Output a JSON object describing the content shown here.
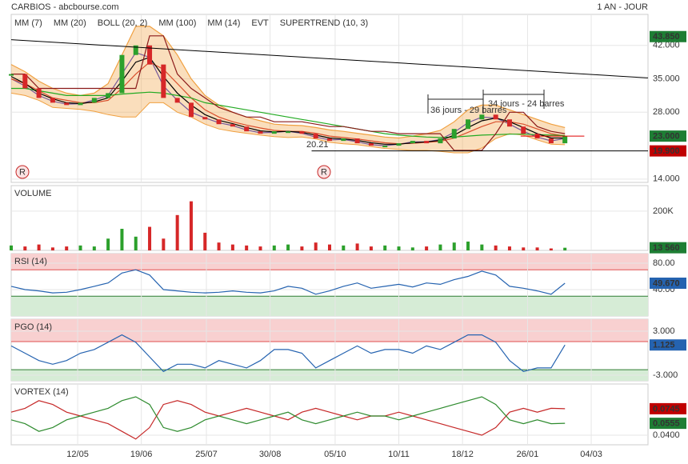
{
  "header": {
    "title": "CARBIOS - abcbourse.com",
    "period": "1 AN - JOUR"
  },
  "chart_data": [
    {
      "type": "line",
      "x": [
        0,
        1,
        2,
        3,
        4,
        5,
        6,
        7,
        8,
        9,
        10,
        11,
        12,
        13,
        14,
        15,
        16,
        17,
        18,
        19,
        20,
        21,
        22,
        23,
        24,
        25,
        26,
        27,
        28,
        29,
        30,
        31,
        32,
        33,
        34,
        35,
        36,
        37,
        38,
        39,
        40
      ],
      "xlim": [
        0,
        46
      ],
      "xticks": [
        {
          "value": 4.8,
          "label": "12/05"
        },
        {
          "value": 9.4,
          "label": "19/06"
        },
        {
          "value": 14.1,
          "label": "25/07"
        },
        {
          "value": 18.7,
          "label": "30/08"
        },
        {
          "value": 23.4,
          "label": "05/10"
        },
        {
          "value": 28,
          "label": "10/11"
        },
        {
          "value": 32.6,
          "label": "18/12"
        },
        {
          "value": 37.3,
          "label": "26/01"
        },
        {
          "value": 41.9,
          "label": "04/03"
        }
      ],
      "ylim": [
        13.3,
        48.5
      ],
      "yticks": [
        {
          "value": 14,
          "label": "14.000"
        },
        {
          "value": 28,
          "label": "28.000"
        },
        {
          "value": 35,
          "label": "35.000"
        },
        {
          "value": 42,
          "label": "42.000"
        }
      ],
      "up_color": "#2ca02c",
      "down_color": "#d62728",
      "values": [
        36,
        33,
        31,
        30,
        29.5,
        30,
        31,
        32,
        40,
        42,
        38,
        31,
        30,
        27,
        26.5,
        25.5,
        25,
        24,
        23.5,
        24,
        24,
        23.5,
        22.5,
        22,
        22.5,
        21.5,
        21,
        21,
        21.5,
        22,
        21.5,
        22.5,
        24.5,
        26.5,
        27.5,
        26.5,
        25,
        23.5,
        22.5,
        21.5,
        23
      ],
      "series": [
        {
          "name": "MM (7)",
          "color": "#3333cc",
          "values": [
            35,
            33.5,
            31.5,
            30.3,
            29.7,
            29.8,
            30.6,
            31.5,
            36,
            40.5,
            39.5,
            33.5,
            30.5,
            28,
            26.8,
            25.8,
            25.2,
            24.3,
            23.7,
            23.8,
            24,
            23.6,
            22.8,
            22.2,
            22.3,
            21.8,
            21.2,
            21,
            21.3,
            21.8,
            21.8,
            22.3,
            23.8,
            25.8,
            27,
            26.8,
            25.5,
            24,
            22.8,
            22,
            22.5
          ]
        },
        {
          "name": "MM (20)",
          "color": "#cc2222",
          "values": [
            35,
            34,
            32.5,
            31,
            30.5,
            30,
            30,
            30.5,
            33,
            36,
            38.5,
            37,
            34,
            31,
            28.5,
            27,
            26,
            25.3,
            24.7,
            24.2,
            24,
            24,
            23.6,
            23,
            22.7,
            22.4,
            22,
            21.6,
            21.4,
            21.5,
            21.7,
            21.9,
            22.6,
            23.8,
            25,
            26,
            26,
            25.5,
            24.5,
            23.5,
            23
          ]
        },
        {
          "name": "BOLL (20, 2)",
          "color": "#f0a040",
          "values": [
            38,
            36.5,
            34.5,
            33,
            32,
            31.5,
            32,
            34,
            40,
            46,
            46,
            44,
            40,
            35,
            31.5,
            29.5,
            28,
            27,
            26.2,
            25.5,
            25.3,
            25.2,
            24.8,
            24.3,
            24,
            23.6,
            23.2,
            22.8,
            22.6,
            23,
            23.5,
            24.2,
            26,
            28.5,
            29.5,
            29.5,
            28.5,
            27.5,
            26.5,
            25.5,
            24.8
          ],
          "lower": [
            32,
            31.5,
            30.5,
            29,
            28.8,
            28.6,
            28.2,
            27.5,
            27,
            27,
            30,
            30,
            28,
            27,
            25.5,
            24.5,
            24,
            23.6,
            23.2,
            22.9,
            22.7,
            22.8,
            22.4,
            21.7,
            21.4,
            21.2,
            20.8,
            20.4,
            20.2,
            20,
            20,
            19.8,
            19.5,
            19.5,
            20.5,
            22.5,
            23.5,
            23.2,
            22.2,
            21.3,
            21.2
          ]
        },
        {
          "name": "MM (100)",
          "color": "#22aa22",
          "values": [
            33,
            33,
            32.5,
            32,
            31.5,
            31.5,
            31.5,
            31.5,
            31.8,
            32,
            32.2,
            32,
            31.5,
            31,
            30,
            29.5,
            29,
            28.5,
            28,
            27.5,
            27,
            26.5,
            26,
            25.5,
            25,
            24.5,
            24,
            23.5,
            23.2,
            23,
            22.8,
            22.7,
            22.8,
            23,
            23.2,
            23.3,
            23.4,
            23.4,
            23.3,
            23.2,
            23.1
          ]
        },
        {
          "name": "MM (14)",
          "color": "#000000",
          "values": [
            35.5,
            34,
            32,
            30.8,
            30,
            29.8,
            30.2,
            31,
            34.5,
            38.5,
            39.5,
            35.5,
            32,
            29.5,
            27.5,
            26.3,
            25.6,
            24.8,
            24.1,
            23.9,
            24,
            23.8,
            23.2,
            22.6,
            22.4,
            22.1,
            21.6,
            21.3,
            21.3,
            21.6,
            21.8,
            22.1,
            23.2,
            24.8,
            26.2,
            26.8,
            26,
            24.8,
            23.5,
            22.6,
            22.6
          ]
        },
        {
          "name": "SUPERTREND (10, 3)",
          "color": "#8b1a1a",
          "values": [
            36,
            36,
            33,
            33,
            33,
            33,
            33,
            33,
            33,
            33,
            44,
            44,
            36,
            33,
            31,
            29,
            28,
            27,
            27,
            26,
            26,
            26,
            25.5,
            25,
            25,
            24.5,
            24,
            24,
            23.5,
            23.5,
            23.5,
            23.5,
            20,
            20,
            20,
            23.5,
            28,
            28,
            25,
            24,
            23.5
          ]
        }
      ],
      "events": {
        "name": "EVT",
        "markers": [
          "R",
          "R"
        ]
      },
      "lines": [
        {
          "x": [
            0,
            46
          ],
          "values": [
            43.2,
            35.2
          ],
          "color": "#000000"
        },
        {
          "x": [
            21.7,
            46
          ],
          "values": [
            19.9,
            19.9
          ],
          "color": "#000000"
        },
        {
          "x": [
            36.8,
            41.4
          ],
          "values": [
            23,
            23
          ],
          "color": "#e00000"
        }
      ],
      "annotations": [
        "20.21",
        "36 jours - 29 barres",
        "34 jours - 24 barres"
      ],
      "last_labels": [
        {
          "value": 43.85,
          "label": "43.850",
          "color": "#1e7e34"
        },
        {
          "value": 23,
          "label": "23.000",
          "color": "#1e7e34"
        },
        {
          "value": 19.9,
          "label": "19.900",
          "color": "#c00000"
        }
      ]
    },
    {
      "type": "bar",
      "title": "VOLUME",
      "ylim": [
        0,
        330000
      ],
      "yticks": [
        {
          "value": 200000,
          "label": "200K"
        }
      ],
      "values": [
        25000,
        20000,
        30000,
        15000,
        20000,
        25000,
        20000,
        60000,
        110000,
        70000,
        120000,
        60000,
        180000,
        250000,
        90000,
        40000,
        30000,
        25000,
        20000,
        25000,
        30000,
        20000,
        40000,
        30000,
        25000,
        35000,
        20000,
        25000,
        20000,
        15000,
        20000,
        30000,
        40000,
        45000,
        30000,
        25000,
        20000,
        15000,
        15000,
        10000,
        13560
      ],
      "last_labels": [
        {
          "value": 13560,
          "label": "13 560",
          "color": "#1e7e34"
        }
      ]
    },
    {
      "type": "line",
      "title": "RSI (14)",
      "ylim": [
        0,
        94.5
      ],
      "yticks": [
        {
          "value": 40,
          "label": "40.00"
        },
        {
          "value": 80,
          "label": "80.00"
        }
      ],
      "bands": [
        {
          "from": 70,
          "to": 94.5,
          "color": "#f8d0d0",
          "line": "#e05050"
        },
        {
          "from": 0,
          "to": 30,
          "color": "#d6ecd6",
          "line": "#2e7d32"
        }
      ],
      "series": [
        {
          "color": "#2563b0",
          "values": [
            45,
            40,
            38,
            35,
            36,
            40,
            45,
            50,
            65,
            70,
            62,
            40,
            38,
            36,
            35,
            36,
            38,
            36,
            35,
            38,
            45,
            42,
            33,
            38,
            45,
            50,
            42,
            45,
            48,
            44,
            50,
            48,
            55,
            60,
            68,
            62,
            45,
            42,
            38,
            33,
            49.67
          ]
        }
      ],
      "last_labels": [
        {
          "value": 49.67,
          "label": "49.670",
          "color": "#2563b0"
        }
      ]
    },
    {
      "type": "line",
      "title": "PGO (14)",
      "ylim": [
        -3.76,
        4.64
      ],
      "yticks": [
        {
          "value": -3,
          "label": "-3.000"
        },
        {
          "value": 3,
          "label": "3.000"
        }
      ],
      "bands": [
        {
          "from": 1.58,
          "to": 4.64,
          "color": "#f8d0d0",
          "line": "#e05050"
        },
        {
          "from": -3.76,
          "to": -2.24,
          "color": "#d6ecd6",
          "line": "#2e7d32"
        }
      ],
      "series": [
        {
          "color": "#2563b0",
          "values": [
            1,
            0,
            -1,
            -1.5,
            -1,
            0,
            0.5,
            1.5,
            2.5,
            1.5,
            -0.5,
            -2.5,
            -1.5,
            -1.5,
            -2,
            -1,
            -1.5,
            -2,
            -1,
            0.5,
            0.5,
            0,
            -2,
            -1,
            0,
            1,
            0,
            0.5,
            0.5,
            0,
            1,
            0.5,
            1.5,
            2.5,
            2.5,
            1.5,
            -1,
            -2.5,
            -2,
            -2,
            1.125
          ]
        }
      ],
      "last_labels": [
        {
          "value": 1.125,
          "label": "1.125",
          "color": "#2563b0"
        }
      ]
    },
    {
      "type": "line",
      "title": "VORTEX (14)",
      "ylim": [
        0.0275,
        0.1067
      ],
      "yticks": [
        {
          "value": 0.04,
          "label": "0.0400"
        }
      ],
      "series": [
        {
          "color": "#c62828",
          "values": [
            0.07,
            0.075,
            0.085,
            0.08,
            0.07,
            0.065,
            0.06,
            0.055,
            0.045,
            0.035,
            0.05,
            0.08,
            0.085,
            0.08,
            0.07,
            0.065,
            0.07,
            0.075,
            0.07,
            0.065,
            0.06,
            0.07,
            0.075,
            0.07,
            0.065,
            0.06,
            0.065,
            0.065,
            0.07,
            0.065,
            0.06,
            0.055,
            0.05,
            0.045,
            0.04,
            0.05,
            0.07,
            0.075,
            0.07,
            0.075,
            0.0745
          ]
        },
        {
          "color": "#2e8b2e",
          "values": [
            0.06,
            0.055,
            0.045,
            0.05,
            0.06,
            0.065,
            0.07,
            0.075,
            0.085,
            0.09,
            0.08,
            0.05,
            0.045,
            0.05,
            0.06,
            0.065,
            0.06,
            0.055,
            0.06,
            0.065,
            0.07,
            0.06,
            0.055,
            0.06,
            0.065,
            0.07,
            0.065,
            0.065,
            0.06,
            0.065,
            0.07,
            0.075,
            0.08,
            0.085,
            0.09,
            0.08,
            0.06,
            0.055,
            0.06,
            0.055,
            0.0555
          ]
        }
      ],
      "last_labels": [
        {
          "value": 0.0745,
          "label": "0.0745",
          "color": "#c00000"
        },
        {
          "value": 0.0555,
          "label": "0.0555",
          "color": "#1e7e34"
        }
      ]
    }
  ]
}
